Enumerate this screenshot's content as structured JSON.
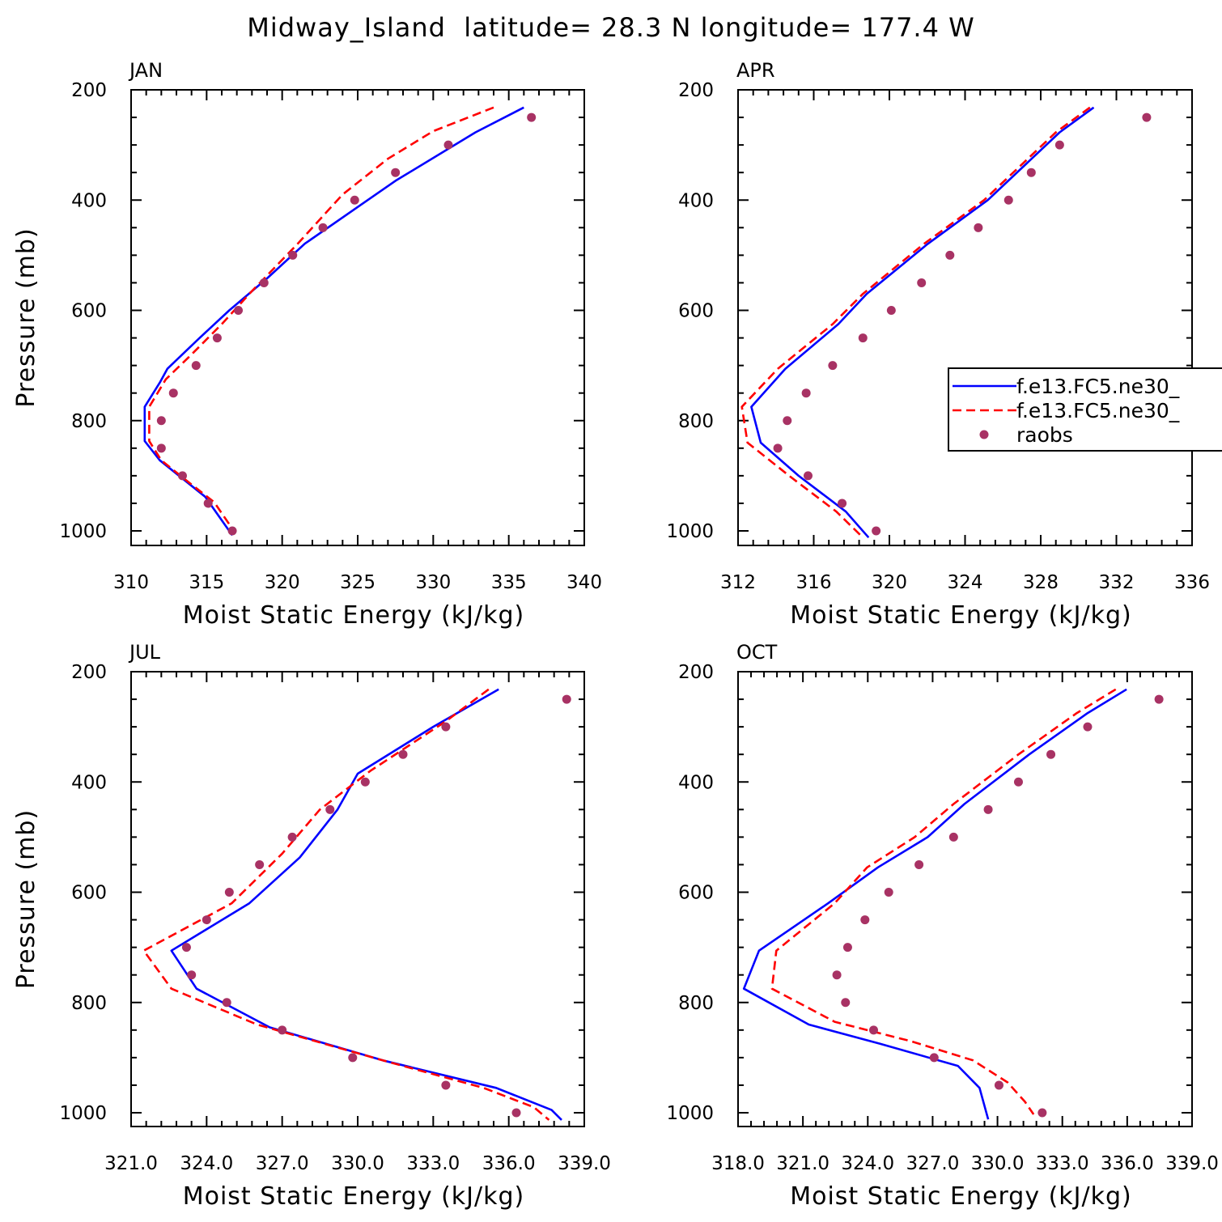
{
  "title": "Midway_Island  latitude= 28.3 N longitude= 177.4 W",
  "colors": {
    "model_a": "#0000ff",
    "model_b": "#ff0000",
    "obs": "#a83264",
    "axis": "#000000"
  },
  "legend": {
    "position": "right, within APR panel",
    "entries": [
      {
        "label": "f.e13.FC5.ne30_",
        "style": "solid",
        "color": "#0000ff"
      },
      {
        "label": "f.e13.FC5.ne30_",
        "style": "dashed",
        "color": "#ff0000"
      },
      {
        "label": "raobs",
        "style": "marker",
        "color": "#a83264"
      }
    ]
  },
  "chart_data": [
    {
      "type": "line",
      "panel": "JAN",
      "xlabel": "Moist Static Energy (kJ/kg)",
      "ylabel": "Pressure (mb)",
      "xlim": [
        310,
        340
      ],
      "ylim": [
        1025,
        200
      ],
      "xticks": [
        310,
        315,
        320,
        325,
        330,
        335,
        340
      ],
      "xtick_labels": [
        "310",
        "315",
        "320",
        "325",
        "330",
        "335",
        "340"
      ],
      "yticks": [
        200,
        400,
        600,
        800,
        1000
      ],
      "ytick_labels": [
        "200",
        "400",
        "600",
        "800",
        "1000"
      ],
      "series": [
        {
          "key": "model_a",
          "style": "solid",
          "x": [
            336.0,
            332.8,
            327.5,
            321.5,
            319.0,
            316.5,
            314.5,
            312.4,
            311.9,
            310.9,
            310.9,
            311.9,
            313.4,
            314.9,
            316.7
          ],
          "y": [
            232,
            277,
            365,
            479,
            542,
            600,
            651,
            706,
            731,
            775,
            837,
            872,
            905,
            938,
            1008
          ]
        },
        {
          "key": "model_b",
          "style": "dashed",
          "x": [
            334.0,
            330.0,
            327.0,
            324.0,
            321.0,
            318.0,
            316.0,
            314.0,
            312.3,
            311.2,
            311.2,
            312.0,
            313.5,
            315.5,
            316.8
          ],
          "y": [
            232,
            275,
            325,
            390,
            480,
            565,
            625,
            680,
            725,
            775,
            837,
            872,
            905,
            948,
            1000
          ]
        },
        {
          "key": "obs",
          "style": "marker",
          "x": [
            336.5,
            331.0,
            327.5,
            324.8,
            322.7,
            320.7,
            318.8,
            317.1,
            315.7,
            314.3,
            312.8,
            312.0,
            312.0,
            313.4,
            315.1,
            316.7
          ],
          "y": [
            250,
            300,
            350,
            400,
            450,
            500,
            550,
            600,
            650,
            700,
            750,
            800,
            850,
            900,
            950,
            1000
          ]
        }
      ]
    },
    {
      "type": "line",
      "panel": "APR",
      "xlabel": "Moist Static Energy (kJ/kg)",
      "ylabel": "",
      "xlim": [
        312,
        336
      ],
      "ylim": [
        1025,
        200
      ],
      "xticks": [
        312,
        316,
        320,
        324,
        328,
        332,
        336
      ],
      "xtick_labels": [
        "312",
        "316",
        "320",
        "324",
        "328",
        "332",
        "336"
      ],
      "yticks": [
        200,
        400,
        600,
        800,
        1000
      ],
      "ytick_labels": [
        "200",
        "400",
        "600",
        "800",
        "1000"
      ],
      "series": [
        {
          "key": "model_a",
          "style": "solid",
          "x": [
            330.8,
            329.0,
            325.2,
            322.0,
            318.8,
            317.3,
            314.5,
            312.7,
            313.2,
            315.2,
            317.7,
            318.9
          ],
          "y": [
            232,
            277,
            400,
            480,
            570,
            625,
            706,
            775,
            840,
            900,
            965,
            1012
          ]
        },
        {
          "key": "model_b",
          "style": "dashed",
          "x": [
            330.6,
            328.8,
            325.0,
            321.8,
            318.6,
            317.0,
            314.1,
            312.2,
            312.5,
            314.7,
            317.2,
            318.6
          ],
          "y": [
            232,
            277,
            400,
            480,
            570,
            625,
            706,
            775,
            840,
            900,
            965,
            1012
          ]
        },
        {
          "key": "obs",
          "style": "marker",
          "x": [
            333.6,
            329.0,
            327.5,
            326.3,
            324.7,
            323.2,
            321.7,
            320.1,
            318.6,
            317.0,
            315.6,
            314.6,
            314.1,
            315.7,
            317.5,
            319.3
          ],
          "y": [
            250,
            300,
            350,
            400,
            450,
            500,
            550,
            600,
            650,
            700,
            750,
            800,
            850,
            900,
            950,
            1000
          ]
        }
      ]
    },
    {
      "type": "line",
      "panel": "JUL",
      "xlabel": "Moist Static Energy (kJ/kg)",
      "ylabel": "Pressure (mb)",
      "xlim": [
        321.0,
        339.0
      ],
      "ylim": [
        1025,
        200
      ],
      "xticks": [
        321,
        324,
        327,
        330,
        333,
        336,
        339
      ],
      "xtick_labels": [
        "321.0",
        "324.0",
        "327.0",
        "330.0",
        "333.0",
        "336.0",
        "339.0"
      ],
      "yticks": [
        200,
        400,
        600,
        800,
        1000
      ],
      "ytick_labels": [
        "200",
        "400",
        "600",
        "800",
        "1000"
      ],
      "series": [
        {
          "key": "model_a",
          "style": "solid",
          "x": [
            335.6,
            333.0,
            330.0,
            329.2,
            327.7,
            325.7,
            322.6,
            323.6,
            326.5,
            331.0,
            335.5,
            337.7,
            338.1
          ],
          "y": [
            232,
            300,
            385,
            450,
            537,
            620,
            706,
            775,
            845,
            905,
            955,
            995,
            1013
          ]
        },
        {
          "key": "model_b",
          "style": "dashed",
          "x": [
            335.2,
            333.5,
            330.5,
            328.5,
            327.0,
            325.0,
            321.5,
            322.6,
            326.0,
            331.0,
            335.0,
            337.0,
            337.6
          ],
          "y": [
            232,
            290,
            380,
            450,
            530,
            620,
            706,
            775,
            840,
            905,
            955,
            990,
            1013
          ]
        },
        {
          "key": "obs",
          "style": "marker",
          "x": [
            338.3,
            333.5,
            331.8,
            330.3,
            328.9,
            327.4,
            326.1,
            324.9,
            324.0,
            323.2,
            323.4,
            324.8,
            327.0,
            329.8,
            333.5,
            336.3
          ],
          "y": [
            250,
            300,
            350,
            400,
            450,
            500,
            550,
            600,
            650,
            700,
            750,
            800,
            850,
            900,
            950,
            1000
          ]
        }
      ]
    },
    {
      "type": "line",
      "panel": "OCT",
      "xlabel": "Moist Static Energy (kJ/kg)",
      "ylabel": "",
      "xlim": [
        318.03,
        339.03
      ],
      "ylim": [
        1025,
        200
      ],
      "xticks": [
        318.03,
        321.03,
        324.03,
        327.03,
        330.03,
        333.03,
        336.03,
        339.03
      ],
      "xtick_labels": [
        "318.0",
        "321.0",
        "324.0",
        "327.0",
        "330.0",
        "333.0",
        "336.0",
        "339.0"
      ],
      "xtick_labels_run_together": true,
      "yticks": [
        200,
        400,
        600,
        800,
        1000
      ],
      "ytick_labels": [
        "200",
        "400",
        "600",
        "800",
        "1000"
      ],
      "series": [
        {
          "key": "model_a",
          "style": "solid",
          "x": [
            336.0,
            334.2,
            331.5,
            328.5,
            326.8,
            324.5,
            322.2,
            319.0,
            318.3,
            321.3,
            324.6,
            328.2,
            329.2,
            329.6
          ],
          "y": [
            232,
            275,
            350,
            440,
            500,
            555,
            620,
            706,
            775,
            840,
            875,
            915,
            955,
            1012
          ]
        },
        {
          "key": "model_b",
          "style": "dashed",
          "x": [
            335.5,
            333.7,
            331.0,
            328.0,
            326.2,
            324.0,
            322.5,
            319.8,
            319.6,
            322.5,
            326.0,
            328.9,
            330.5,
            331.3,
            331.7
          ],
          "y": [
            232,
            275,
            350,
            440,
            500,
            555,
            620,
            706,
            775,
            835,
            870,
            905,
            945,
            980,
            1003
          ]
        },
        {
          "key": "obs",
          "style": "marker",
          "x": [
            337.5,
            334.2,
            332.5,
            331.0,
            329.6,
            328.0,
            326.4,
            325.0,
            323.9,
            323.1,
            322.6,
            323.0,
            324.3,
            327.1,
            330.1,
            332.1
          ],
          "y": [
            250,
            300,
            350,
            400,
            450,
            500,
            550,
            600,
            650,
            700,
            750,
            800,
            850,
            900,
            950,
            1000
          ]
        }
      ]
    }
  ]
}
